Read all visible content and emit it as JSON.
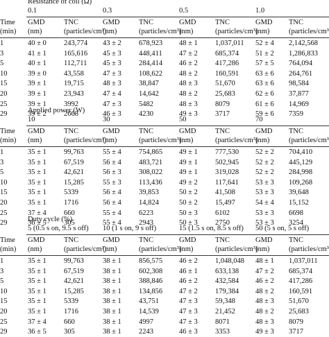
{
  "section1": {
    "title": "Resistance of coil (Ω)",
    "levels": [
      "0.1",
      "0.3",
      "0.5",
      "1.0"
    ],
    "header1": [
      "Time",
      "GMD",
      "TNC",
      "GMD",
      "TNC",
      "GMD",
      "TNC",
      "GMD",
      "TNC"
    ],
    "header2": [
      "(min)",
      "(nm)",
      "(particles/cm³)",
      "(nm)",
      "(particles/cm³)",
      "(nm)",
      "(particles/cm³)",
      "(nm)",
      "(particles/cm³)"
    ],
    "rows": [
      [
        "1",
        "40 ± 0",
        "243,774",
        "43 ± 2",
        "678,923",
        "48 ± 1",
        "1,037,011",
        "52 ± 4",
        "2,142,568"
      ],
      [
        "3",
        "41 ± 1",
        "165,616",
        "45 ± 3",
        "448,411",
        "47 ± 2",
        "685,374",
        "51 ± 2",
        "1,286,833"
      ],
      [
        "5",
        "40 ± 1",
        "112,711",
        "45 ± 3",
        "284,414",
        "46 ± 2",
        "417,286",
        "57 ± 5",
        "764,094"
      ],
      [
        "10",
        "39 ± 0",
        "43,558",
        "47 ± 3",
        "108,622",
        "48 ± 2",
        "160,591",
        "63 ± 6",
        "264,761"
      ],
      [
        "15",
        "39 ± 1",
        "19,715",
        "48 ± 3",
        "38,847",
        "48 ± 3",
        "51,670",
        "63 ± 6",
        "98,584"
      ],
      [
        "20",
        "39 ± 1",
        "23,943",
        "47 ± 4",
        "14,642",
        "48 ± 2",
        "25,683",
        "62 ± 6",
        "37,877"
      ],
      [
        "25",
        "39 ± 1",
        "3992",
        "47 ± 3",
        "5482",
        "48 ± 3",
        "8079",
        "61 ± 6",
        "14,969"
      ],
      [
        "29",
        "39 ± 2",
        "2668",
        "46 ± 3",
        "4230",
        "49 ± 3",
        "3717",
        "59 ± 6",
        "7359"
      ]
    ]
  },
  "section2": {
    "title": "Applied power (W)",
    "levels": [
      "10",
      "30",
      "50",
      "70"
    ],
    "header1": [
      "Time",
      "GMD",
      "TNC",
      "GMD",
      "TNC",
      "GMD",
      "TNC",
      "GMD",
      "TNC"
    ],
    "header2": [
      "(min)",
      "(nm)",
      "(particles/cm³)",
      "(nm)",
      "(particles/cm³)",
      "(nm)",
      "(particles/cm³)",
      "(nm)",
      "(particles/cm³)"
    ],
    "rows": [
      [
        "1",
        "35 ± 1",
        "99,763",
        "55 ± 4",
        "754,865",
        "49 ± 1",
        "777,530",
        "52 ± 2",
        "704,410"
      ],
      [
        "3",
        "35 ± 1",
        "67,519",
        "56 ± 4",
        "483,721",
        "49 ± 1",
        "502,945",
        "52 ± 2",
        "445,129"
      ],
      [
        "5",
        "35 ± 1",
        "42,621",
        "56 ± 3",
        "308,022",
        "49 ± 1",
        "319,028",
        "52 ± 2",
        "284,998"
      ],
      [
        "10",
        "35 ± 1",
        "15,285",
        "55 ± 3",
        "113,436",
        "49 ± 2",
        "117,641",
        "53 ± 3",
        "109,268"
      ],
      [
        "15",
        "35 ± 1",
        "5339",
        "56 ± 4",
        "39,853",
        "50 ± 2",
        "41,508",
        "53 ± 3",
        "39,648"
      ],
      [
        "20",
        "35 ± 1",
        "1716",
        "56 ± 4",
        "14,824",
        "50 ± 2",
        "15,497",
        "54 ± 4",
        "15,152"
      ],
      [
        "25",
        "37 ± 4",
        "660",
        "55 ± 4",
        "6223",
        "50 ± 3",
        "6102",
        "53 ± 3",
        "6698"
      ],
      [
        "29",
        "36 ± 5",
        "305",
        "55 ± 4",
        "2943",
        "50 ± 3",
        "2750",
        "53 ± 3",
        "3254"
      ]
    ]
  },
  "section3": {
    "title": "Duty cycle (%)",
    "levels": [
      "5 (0.5 s on, 9.5 s off)",
      "10 (1 s on, 9 s off)",
      "15 (1.5 s on, 8.5 s off)",
      "50 (5 s on, 5 s off)"
    ],
    "header1": [
      "Time",
      "GMD",
      "TNC",
      "GMD",
      "TNC",
      "GMD",
      "TNC",
      "GMD",
      "TNC"
    ],
    "header2": [
      "(min)",
      "(nm)",
      "(particles/cm³)",
      "(nm)",
      "(particles/cm³)",
      "(nm)",
      "(particles/cm³)",
      "(nm)",
      "(particles/cm³)"
    ],
    "rows": [
      [
        "1",
        "35 ± 1",
        "99,763",
        "38 ± 1",
        "856,575",
        "46 ± 2",
        "1,048,048",
        "48 ± 1",
        "1,037,011"
      ],
      [
        "3",
        "35 ± 1",
        "67,519",
        "38 ± 1",
        "602,308",
        "46 ± 1",
        "633,138",
        "47 ± 2",
        "685,374"
      ],
      [
        "5",
        "35 ± 1",
        "42,621",
        "38 ± 1",
        "388,846",
        "46 ± 2",
        "432,584",
        "46 ± 2",
        "417,286"
      ],
      [
        "10",
        "35 ± 1",
        "15,285",
        "38 ± 1",
        "134,856",
        "47 ± 2",
        "179,384",
        "48 ± 2",
        "160,591"
      ],
      [
        "15",
        "35 ± 1",
        "5339",
        "38 ± 1",
        "43,751",
        "47 ± 3",
        "59,348",
        "48 ± 3",
        "51,670"
      ],
      [
        "20",
        "35 ± 1",
        "1716",
        "38 ± 1",
        "14,539",
        "47 ± 3",
        "21,452",
        "48 ± 2",
        "25,683"
      ],
      [
        "25",
        "37 ± 4",
        "660",
        "38 ± 1",
        "4997",
        "47 ± 3",
        "8071",
        "48 ± 3",
        "8079"
      ],
      [
        "29",
        "36 ± 5",
        "305",
        "38 ± 1",
        "2243",
        "46 ± 3",
        "3353",
        "49 ± 3",
        "3717"
      ]
    ]
  }
}
